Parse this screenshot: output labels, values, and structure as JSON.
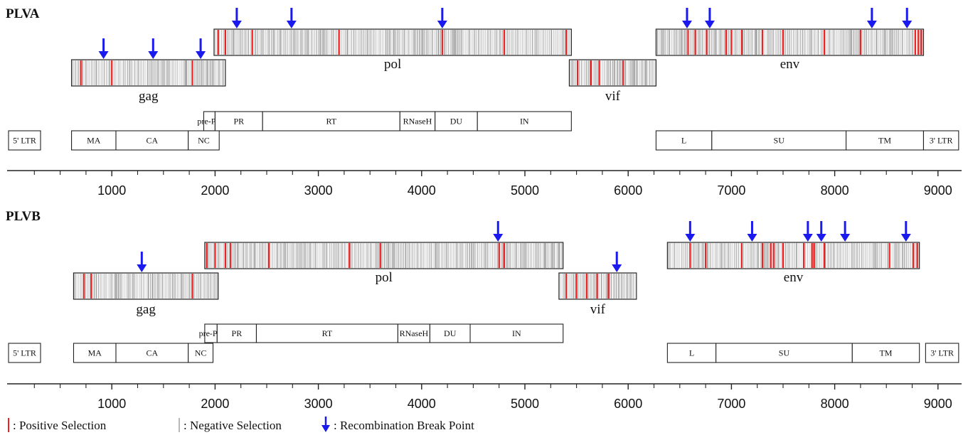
{
  "colors": {
    "positive": "#ee2222",
    "negative": "#b8b8b8",
    "arrow": "#1a1aee",
    "box_fill": "#f4f4f4"
  },
  "axis": {
    "min": 0,
    "max": 9000,
    "tick_step": 250,
    "labels": [
      "1000",
      "2000",
      "3000",
      "4000",
      "5000",
      "6000",
      "7000",
      "8000",
      "9000"
    ]
  },
  "panels": [
    {
      "label": "PLVA",
      "genes": [
        {
          "name": "gag",
          "start": 610,
          "end": 2100,
          "row": "low",
          "positive": [
            700,
            1000,
            1780
          ],
          "breakpoints": [
            920,
            1400,
            1860
          ]
        },
        {
          "name": "pol",
          "start": 1990,
          "end": 5450,
          "row": "high",
          "positive": [
            2030,
            2100,
            2360,
            3200,
            4200,
            4800,
            5400
          ],
          "breakpoints": [
            2210,
            2740,
            4200
          ]
        },
        {
          "name": "vif",
          "start": 5430,
          "end": 6270,
          "row": "mid",
          "positive": [
            5510,
            5640,
            5720,
            5950
          ],
          "breakpoints": []
        },
        {
          "name": "env",
          "start": 6270,
          "end": 8860,
          "row": "high",
          "positive": [
            6580,
            6650,
            6760,
            6950,
            7000,
            7100,
            7300,
            7500,
            7900,
            8250,
            8780,
            8810,
            8840
          ],
          "breakpoints": [
            6570,
            6790,
            8360,
            8700
          ]
        }
      ],
      "domains_top": [
        {
          "label": "pre-PR",
          "start": 1890,
          "end": 2000
        },
        {
          "label": "PR",
          "start": 2000,
          "end": 2460
        },
        {
          "label": "RT",
          "start": 2460,
          "end": 3790
        },
        {
          "label": "RNaseH",
          "start": 3790,
          "end": 4130
        },
        {
          "label": "DU",
          "start": 4130,
          "end": 4540
        },
        {
          "label": "IN",
          "start": 4540,
          "end": 5450
        }
      ],
      "domains_bottom": [
        {
          "label": "5' LTR",
          "start": 0,
          "end": 310
        },
        {
          "label": "MA",
          "start": 610,
          "end": 1040
        },
        {
          "label": "CA",
          "start": 1040,
          "end": 1740
        },
        {
          "label": "NC",
          "start": 1740,
          "end": 2040
        },
        {
          "label": "L",
          "start": 6270,
          "end": 6810
        },
        {
          "label": "SU",
          "start": 6810,
          "end": 8110
        },
        {
          "label": "TM",
          "start": 8110,
          "end": 8860
        },
        {
          "label": "3' LTR",
          "start": 8860,
          "end": 9200
        }
      ]
    },
    {
      "label": "PLVB",
      "genes": [
        {
          "name": "gag",
          "start": 630,
          "end": 2030,
          "row": "low",
          "positive": [
            730,
            800,
            1780
          ],
          "breakpoints": [
            1290
          ]
        },
        {
          "name": "pol",
          "start": 1900,
          "end": 5370,
          "row": "high",
          "positive": [
            1920,
            2000,
            2100,
            2150,
            2520,
            3300,
            3600,
            4750,
            4800
          ],
          "breakpoints": [
            4740
          ]
        },
        {
          "name": "vif",
          "start": 5330,
          "end": 6080,
          "row": "mid",
          "positive": [
            5400,
            5500,
            5600,
            5700,
            5810
          ],
          "breakpoints": [
            5890
          ]
        },
        {
          "name": "env",
          "start": 6380,
          "end": 8820,
          "row": "high",
          "positive": [
            6600,
            6750,
            7100,
            7300,
            7380,
            7410,
            7500,
            7700,
            7780,
            7800,
            7900,
            8530,
            8760,
            8800
          ],
          "breakpoints": [
            6600,
            7200,
            7740,
            7870,
            8100,
            8690
          ]
        }
      ],
      "domains_top": [
        {
          "label": "pre-PR",
          "start": 1900,
          "end": 2020
        },
        {
          "label": "PR",
          "start": 2020,
          "end": 2400
        },
        {
          "label": "RT",
          "start": 2400,
          "end": 3770
        },
        {
          "label": "RNaseH",
          "start": 3770,
          "end": 4080
        },
        {
          "label": "DU",
          "start": 4080,
          "end": 4470
        },
        {
          "label": "IN",
          "start": 4470,
          "end": 5370
        }
      ],
      "domains_bottom": [
        {
          "label": "5' LTR",
          "start": 0,
          "end": 310
        },
        {
          "label": "MA",
          "start": 630,
          "end": 1040
        },
        {
          "label": "CA",
          "start": 1040,
          "end": 1740
        },
        {
          "label": "NC",
          "start": 1740,
          "end": 1980
        },
        {
          "label": "L",
          "start": 6380,
          "end": 6850
        },
        {
          "label": "SU",
          "start": 6850,
          "end": 8170
        },
        {
          "label": "TM",
          "start": 8170,
          "end": 8820
        },
        {
          "label": "3' LTR",
          "start": 8880,
          "end": 9200
        }
      ]
    }
  ],
  "legend": {
    "positive": ": Positive Selection",
    "negative": ": Negative Selection",
    "breakpoint": ": Recombination Break Point"
  }
}
